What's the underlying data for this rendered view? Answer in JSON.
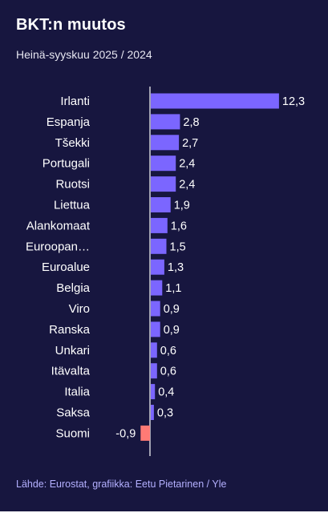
{
  "title": "BKT:n muutos",
  "subtitle": "Heinä-syyskuu 2025 / 2024",
  "source": "Lähde: Eurostat, grafiikka: Eetu Pietarinen / Yle",
  "colors": {
    "background": "#17163f",
    "positive_bar": "#7b66ff",
    "negative_bar": "#ff7a75",
    "axis": "#ffffff"
  },
  "chart_data": {
    "type": "bar",
    "orientation": "horizontal",
    "categories": [
      "Irlanti",
      "Espanja",
      "Tšekki",
      "Portugali",
      "Ruotsi",
      "Liettua",
      "Alankomaat",
      "Euroopan…",
      "Euroalue",
      "Belgia",
      "Viro",
      "Ranska",
      "Unkari",
      "Itävalta",
      "Italia",
      "Saksa",
      "Suomi"
    ],
    "values": [
      12.3,
      2.8,
      2.7,
      2.4,
      2.4,
      1.9,
      1.6,
      1.5,
      1.3,
      1.1,
      0.9,
      0.9,
      0.6,
      0.6,
      0.4,
      0.3,
      -0.9
    ],
    "value_labels": [
      "12,3",
      "2,8",
      "2,7",
      "2,4",
      "2,4",
      "1,9",
      "1,6",
      "1,5",
      "1,3",
      "1,1",
      "0,9",
      "0,9",
      "0,6",
      "0,6",
      "0,4",
      "0,3",
      "-0,9"
    ],
    "title": "BKT:n muutos",
    "subtitle": "Heinä-syyskuu 2025 / 2024",
    "xlabel": "",
    "ylabel": "",
    "grid": false,
    "legend": "none"
  }
}
